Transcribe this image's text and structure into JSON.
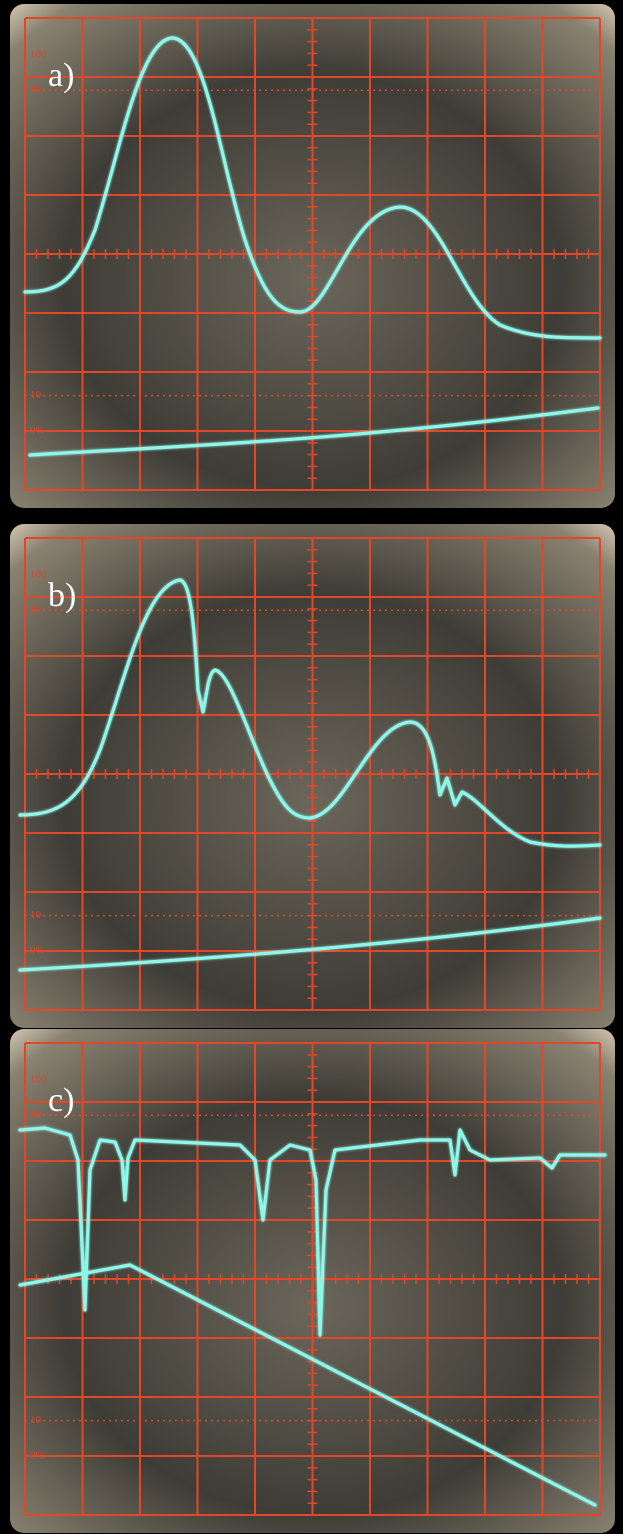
{
  "panels": [
    {
      "label": "a)",
      "graticule": {
        "top": "100",
        "upper": "90",
        "lower": "10",
        "bottom": "0%"
      }
    },
    {
      "label": "b)",
      "graticule": {
        "top": "100",
        "upper": "90",
        "lower": "10",
        "bottom": "0%"
      }
    },
    {
      "label": "c)",
      "graticule": {
        "top": "100",
        "upper": "90",
        "lower": "10",
        "bottom": "0%"
      }
    }
  ]
}
